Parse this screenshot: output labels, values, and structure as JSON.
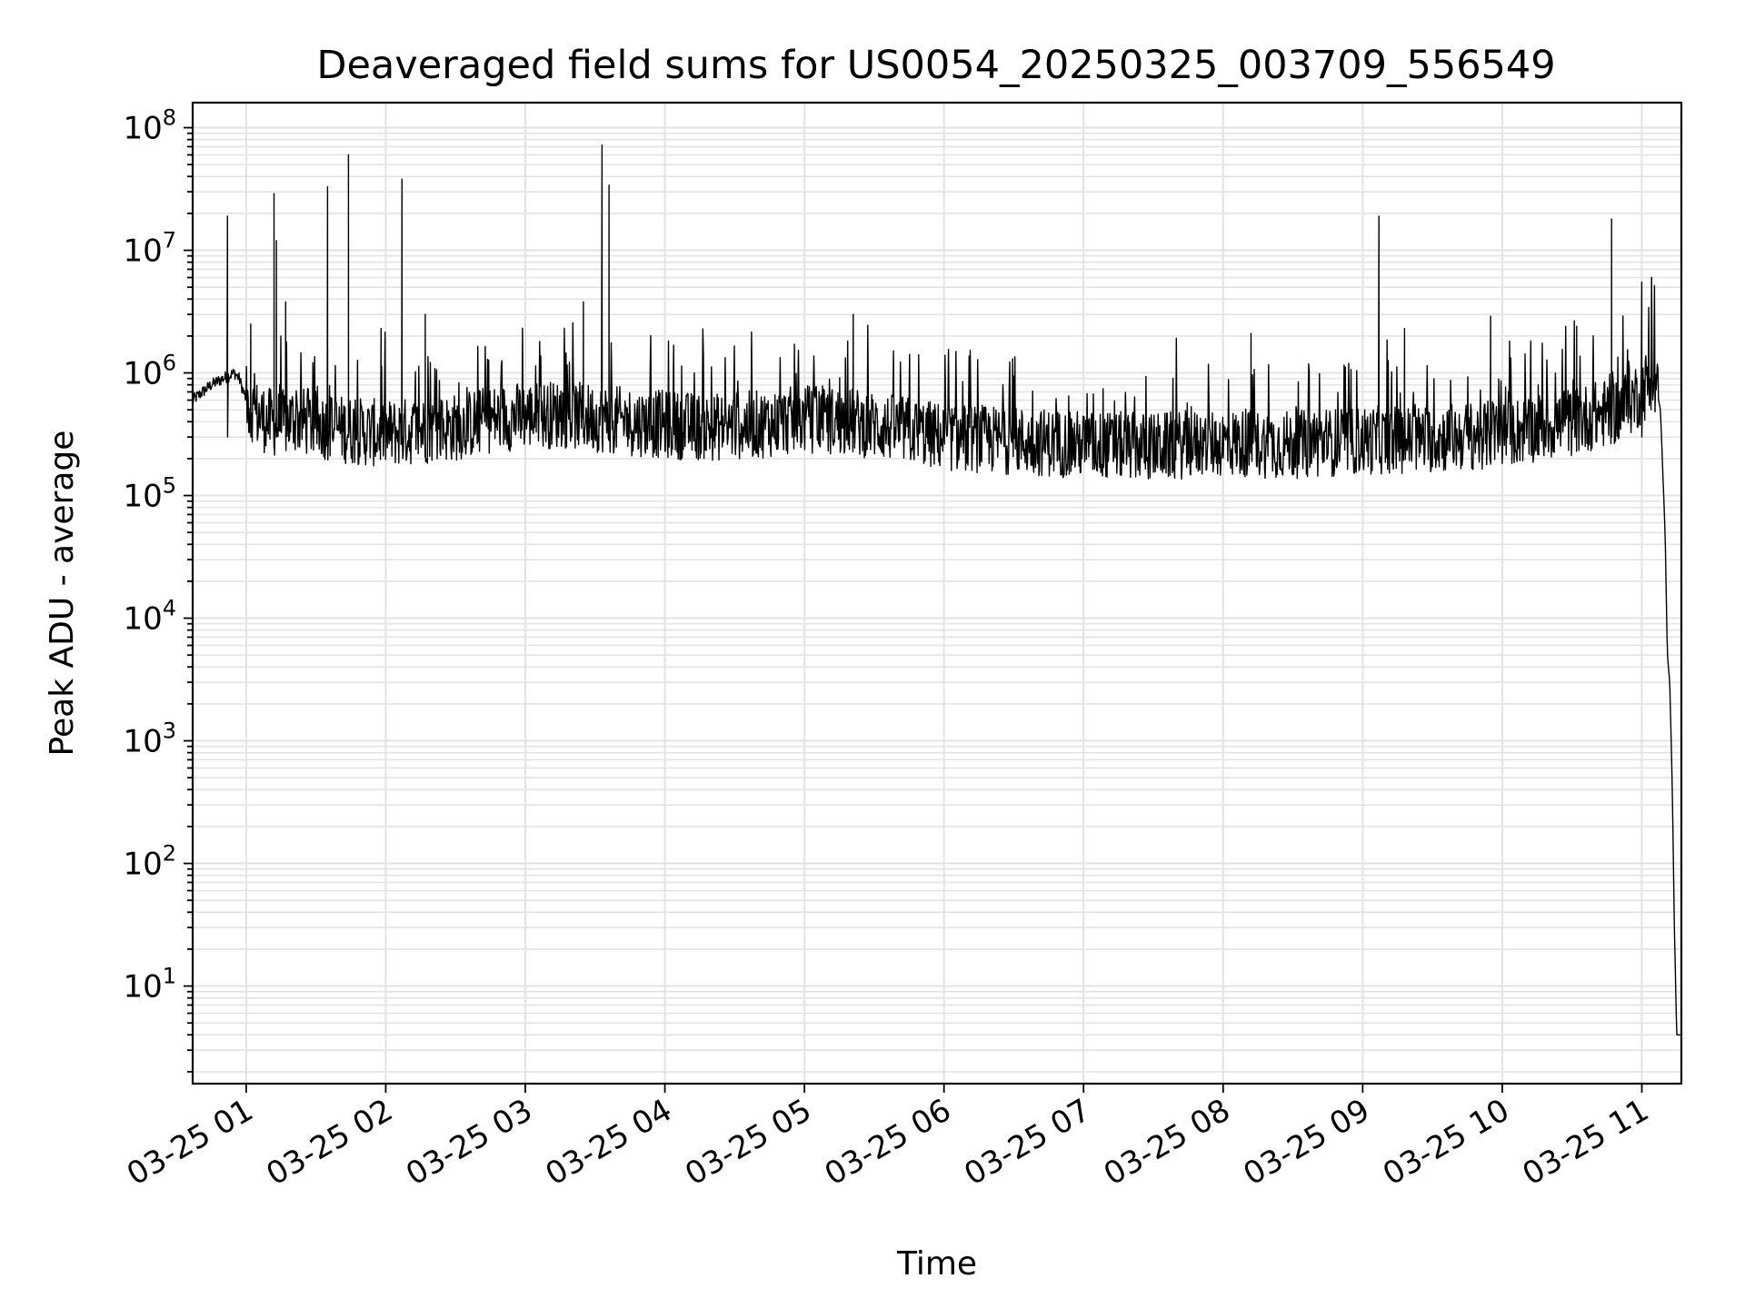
{
  "chart_data": {
    "type": "line",
    "title": "Deaveraged field sums for US0054_20250325_003709_556549",
    "xlabel": "Time",
    "ylabel": "Peak ADU - average",
    "yscale": "log",
    "grid": true,
    "line_color": "#000000",
    "x_tick_labels": [
      "03-25 01",
      "03-25 02",
      "03-25 03",
      "03-25 04",
      "03-25 05",
      "03-25 06",
      "03-25 07",
      "03-25 08",
      "03-25 09",
      "03-25 10",
      "03-25 11"
    ],
    "y_tick_labels": [
      {
        "base": "10",
        "exp": "1"
      },
      {
        "base": "10",
        "exp": "2"
      },
      {
        "base": "10",
        "exp": "3"
      },
      {
        "base": "10",
        "exp": "4"
      },
      {
        "base": "10",
        "exp": "5"
      },
      {
        "base": "10",
        "exp": "6"
      },
      {
        "base": "10",
        "exp": "7"
      },
      {
        "base": "10",
        "exp": "8"
      }
    ],
    "xlim": [
      "2025-03-25 00:37",
      "2025-03-25 11:17"
    ],
    "ylim": [
      1.6,
      160000000
    ],
    "series": [
      {
        "x": [
          "2025-03-25 00:37",
          "2025-03-25 00:45",
          "2025-03-25 00:50",
          "2025-03-25 00:55",
          "2025-03-25 00:57",
          "2025-03-25 01:00",
          "2025-03-25 01:05",
          "2025-03-25 01:10",
          "2025-03-25 01:15",
          "2025-03-25 01:20",
          "2025-03-25 01:25",
          "2025-03-25 01:30",
          "2025-03-25 01:40",
          "2025-03-25 01:50",
          "2025-03-25 02:00",
          "2025-03-25 02:15",
          "2025-03-25 02:30",
          "2025-03-25 02:45",
          "2025-03-25 03:00",
          "2025-03-25 03:15",
          "2025-03-25 03:30",
          "2025-03-25 03:45",
          "2025-03-25 04:00",
          "2025-03-25 04:20",
          "2025-03-25 04:40",
          "2025-03-25 05:00",
          "2025-03-25 05:20",
          "2025-03-25 05:40",
          "2025-03-25 06:00",
          "2025-03-25 06:30",
          "2025-03-25 07:00",
          "2025-03-25 07:30",
          "2025-03-25 08:00",
          "2025-03-25 08:30",
          "2025-03-25 09:00",
          "2025-03-25 09:30",
          "2025-03-25 10:00",
          "2025-03-25 10:30",
          "2025-03-25 10:50",
          "2025-03-25 11:00",
          "2025-03-25 11:05",
          "2025-03-25 11:08",
          "2025-03-25 11:10",
          "2025-03-25 11:11",
          "2025-03-25 11:12",
          "2025-03-25 11:13",
          "2025-03-25 11:14",
          "2025-03-25 11:15",
          "2025-03-25 11:16",
          "2025-03-25 11:17"
        ],
        "values": [
          600000,
          800000,
          900000,
          1000000,
          900000,
          600000,
          450000,
          400000,
          380000,
          420000,
          400000,
          380000,
          350000,
          330000,
          320000,
          340000,
          360000,
          420000,
          450000,
          460000,
          430000,
          400000,
          380000,
          360000,
          380000,
          420000,
          400000,
          350000,
          300000,
          280000,
          260000,
          250000,
          270000,
          260000,
          280000,
          290000,
          320000,
          400000,
          500000,
          700000,
          1000000,
          500000,
          50000,
          5000,
          3000,
          500,
          30,
          4,
          4,
          4
        ]
      }
    ],
    "spikes": [
      {
        "x": "2025-03-25 00:52",
        "y": 19000000
      },
      {
        "x": "2025-03-25 01:02",
        "y": 2500000
      },
      {
        "x": "2025-03-25 01:12",
        "y": 29000000
      },
      {
        "x": "2025-03-25 01:13",
        "y": 12000000
      },
      {
        "x": "2025-03-25 01:17",
        "y": 3800000
      },
      {
        "x": "2025-03-25 01:35",
        "y": 33000000
      },
      {
        "x": "2025-03-25 01:44",
        "y": 60000000
      },
      {
        "x": "2025-03-25 01:58",
        "y": 2300000
      },
      {
        "x": "2025-03-25 02:07",
        "y": 38000000
      },
      {
        "x": "2025-03-25 02:17",
        "y": 3000000
      },
      {
        "x": "2025-03-25 03:25",
        "y": 3800000
      },
      {
        "x": "2025-03-25 03:33",
        "y": 72000000
      },
      {
        "x": "2025-03-25 03:36",
        "y": 34000000
      },
      {
        "x": "2025-03-25 05:21",
        "y": 3000000
      },
      {
        "x": "2025-03-25 08:12",
        "y": 2100000
      },
      {
        "x": "2025-03-25 09:07",
        "y": 19000000
      },
      {
        "x": "2025-03-25 09:18",
        "y": 2300000
      },
      {
        "x": "2025-03-25 09:55",
        "y": 2900000
      },
      {
        "x": "2025-03-25 10:32",
        "y": 2400000
      },
      {
        "x": "2025-03-25 10:47",
        "y": 18000000
      },
      {
        "x": "2025-03-25 11:00",
        "y": 5500000
      }
    ]
  }
}
